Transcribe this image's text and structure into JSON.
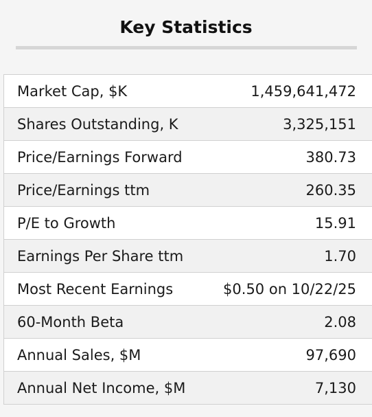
{
  "title": "Key Statistics",
  "stats": [
    {
      "label": "Market Cap, $K",
      "value": "1,459,641,472"
    },
    {
      "label": "Shares Outstanding, K",
      "value": "3,325,151"
    },
    {
      "label": "Price/Earnings Forward",
      "value": "380.73"
    },
    {
      "label": "Price/Earnings ttm",
      "value": "260.35"
    },
    {
      "label": "P/E to Growth",
      "value": "15.91"
    },
    {
      "label": "Earnings Per Share ttm",
      "value": "1.70"
    },
    {
      "label": "Most Recent Earnings",
      "value": "$0.50 on 10/22/25"
    },
    {
      "label": "60-Month Beta",
      "value": "2.08"
    },
    {
      "label": "Annual Sales, $M",
      "value": "97,690"
    },
    {
      "label": "Annual Net Income, $M",
      "value": "7,130"
    }
  ]
}
